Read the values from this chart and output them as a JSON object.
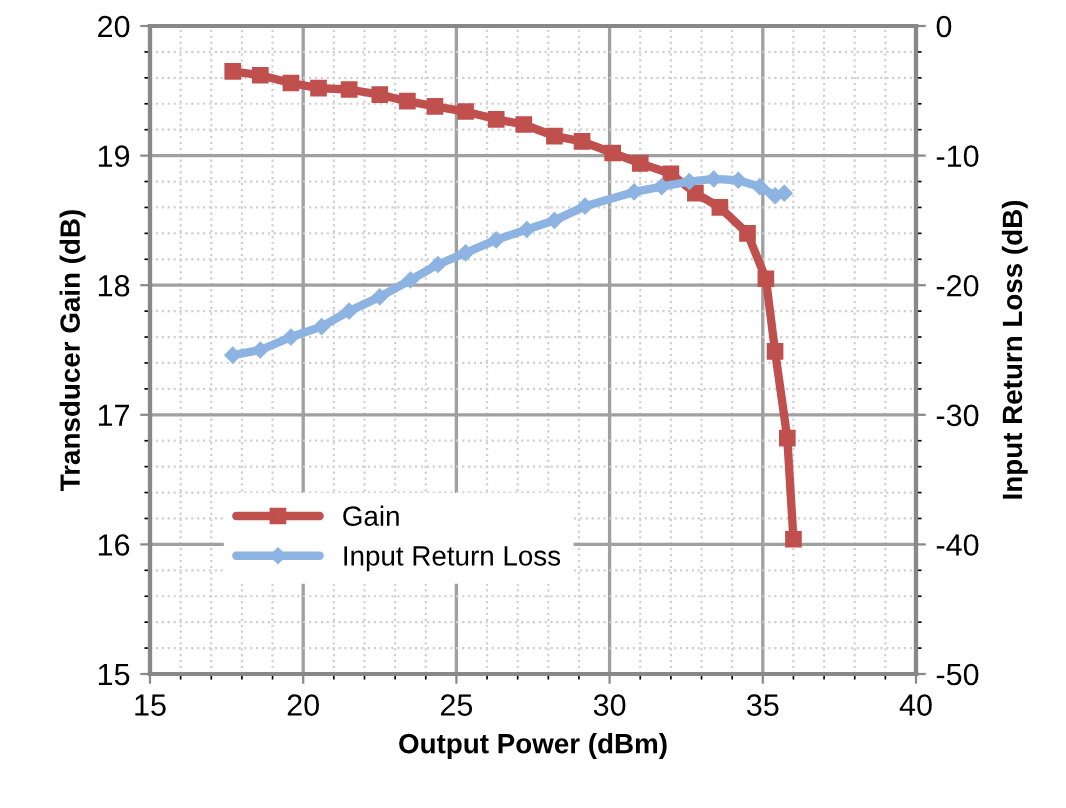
{
  "chart_data": {
    "type": "line",
    "xlabel": "Output Power (dBm)",
    "ylabel": "Transducer Gain (dB)",
    "y2label": "Input Return Loss (dB)",
    "xlim": [
      15,
      40
    ],
    "xticks": [
      15,
      20,
      25,
      30,
      35,
      40
    ],
    "ylim": [
      15,
      20
    ],
    "yticks": [
      15,
      16,
      17,
      18,
      19,
      20
    ],
    "y2lim": [
      -50,
      0
    ],
    "y2ticks": [
      -50,
      -40,
      -30,
      -20,
      -10,
      0
    ],
    "grid": true,
    "legend": "bottom left",
    "line_style": "solid",
    "series": [
      {
        "name": "Gain",
        "color": "#c0504d",
        "marker": "square",
        "x": [
          17.7,
          18.6,
          19.6,
          20.5,
          21.5,
          22.5,
          23.4,
          24.3,
          25.3,
          26.3,
          27.2,
          28.2,
          29.1,
          30.1,
          31.0,
          32.0,
          32.8,
          33.6,
          34.5,
          35.1,
          35.4,
          35.8,
          36.0
        ],
        "values": [
          19.65,
          19.62,
          19.56,
          19.52,
          19.51,
          19.47,
          19.42,
          19.38,
          19.34,
          19.28,
          19.24,
          19.15,
          19.11,
          19.02,
          18.94,
          18.86,
          18.71,
          18.6,
          18.4,
          18.05,
          17.49,
          16.82,
          16.04
        ]
      },
      {
        "name": "Input Return Loss",
        "color": "#8db3e2",
        "marker": "diamond",
        "axis": "y2",
        "x": [
          17.7,
          18.6,
          19.6,
          20.6,
          21.5,
          22.5,
          23.5,
          24.4,
          25.3,
          26.3,
          27.3,
          28.2,
          29.2,
          30.8,
          31.7,
          32.6,
          33.4,
          34.2,
          34.9,
          35.4,
          35.7
        ],
        "values": [
          -25.4,
          -25.0,
          -24.0,
          -23.2,
          -22.0,
          -20.9,
          -19.6,
          -18.4,
          -17.5,
          -16.5,
          -15.7,
          -15.0,
          -13.9,
          -12.8,
          -12.4,
          -12.0,
          -11.8,
          -11.9,
          -12.4,
          -13.1,
          -12.9
        ]
      }
    ]
  }
}
